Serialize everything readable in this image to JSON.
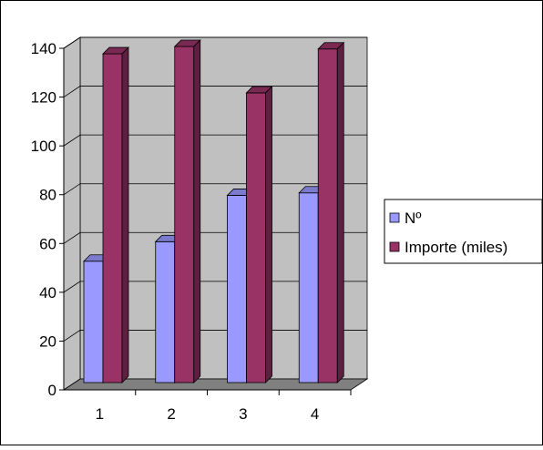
{
  "chart_data": {
    "type": "bar",
    "style": "3d-clustered-column",
    "title": "",
    "xlabel": "",
    "ylabel": "",
    "categories": [
      "1",
      "2",
      "3",
      "4"
    ],
    "series": [
      {
        "name": "Nº",
        "values": [
          49,
          57,
          76,
          77
        ],
        "color": "#9999ff",
        "top_color": "#7b7bcc",
        "side_color": "#6c6cb3"
      },
      {
        "name": "Importe (miles)",
        "values": [
          134,
          137,
          118,
          136
        ],
        "color": "#993366",
        "top_color": "#7a2952",
        "side_color": "#5f1f40"
      }
    ],
    "ylim": [
      0,
      140
    ],
    "yticks": [
      "0",
      "20",
      "40",
      "60",
      "80",
      "100",
      "120",
      "140"
    ],
    "grid": true,
    "wall_color": "#c0c0c0",
    "floor_color": "#808080",
    "legend_position": "right"
  }
}
